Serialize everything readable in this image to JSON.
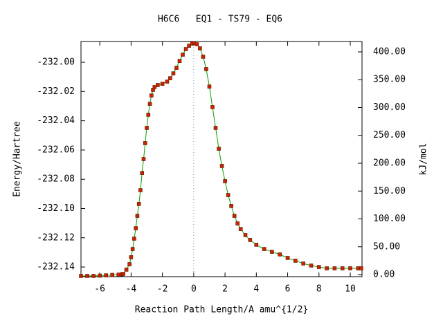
{
  "chart_data": {
    "type": "line",
    "title": "H6C6   EQ1 - TS79 - EQ6",
    "x_label": "Reaction Path Length/A amu^{1/2}",
    "y_label": "Energy/Hartree",
    "y2_label": "kJ/mol",
    "x": [
      -7.2,
      -6.8,
      -6.4,
      -6.0,
      -5.6,
      -5.2,
      -4.8,
      -4.6,
      -4.5,
      -4.3,
      -4.1,
      -4.0,
      -3.9,
      -3.8,
      -3.7,
      -3.6,
      -3.5,
      -3.4,
      -3.3,
      -3.2,
      -3.1,
      -3.0,
      -2.9,
      -2.8,
      -2.7,
      -2.6,
      -2.5,
      -2.3,
      -2.0,
      -1.7,
      -1.5,
      -1.3,
      -1.1,
      -0.9,
      -0.7,
      -0.5,
      -0.3,
      -0.1,
      0.0,
      0.2,
      0.4,
      0.6,
      0.8,
      1.0,
      1.2,
      1.4,
      1.6,
      1.8,
      2.0,
      2.2,
      2.4,
      2.6,
      2.8,
      3.0,
      3.3,
      3.6,
      4.0,
      4.5,
      5.0,
      5.5,
      6.0,
      6.5,
      7.0,
      7.5,
      8.0,
      8.5,
      9.0,
      9.5,
      10.0,
      10.5,
      10.7
    ],
    "values": [
      -232.1461,
      -232.1461,
      -232.1461,
      -232.1459,
      -232.1457,
      -232.1454,
      -232.1452,
      -232.145,
      -232.1447,
      -232.1418,
      -232.1381,
      -232.1333,
      -232.1277,
      -232.1206,
      -232.1135,
      -232.105,
      -232.0969,
      -232.0875,
      -232.0757,
      -232.0662,
      -232.0553,
      -232.0449,
      -232.0359,
      -232.0284,
      -232.0227,
      -232.0189,
      -232.017,
      -232.0156,
      -232.0147,
      -232.0132,
      -232.0109,
      -232.0076,
      -232.0038,
      -231.9991,
      -231.9948,
      -231.991,
      -231.9887,
      -231.9872,
      -231.9868,
      -231.9877,
      -231.9905,
      -231.9962,
      -232.0047,
      -232.0166,
      -232.0307,
      -232.0449,
      -232.0591,
      -232.0709,
      -232.0813,
      -232.0908,
      -232.0983,
      -232.105,
      -232.1102,
      -232.114,
      -232.1182,
      -232.1215,
      -232.1248,
      -232.1277,
      -232.1296,
      -232.1314,
      -232.1338,
      -232.1357,
      -232.1376,
      -232.139,
      -232.14,
      -232.1409,
      -232.1409,
      -232.1409,
      -232.1409,
      -232.1409,
      -232.1409
    ],
    "line_color": "#00a000",
    "marker_color": "#cc2200",
    "xlim": [
      -7.2,
      10.75
    ],
    "xticks": [
      -6,
      -4,
      -2,
      0,
      2,
      4,
      6,
      8,
      10
    ],
    "ylim": [
      -232.1466,
      -231.9858
    ],
    "yticks": [
      {
        "value": -232.14,
        "label": "-232.14"
      },
      {
        "value": -232.12,
        "label": "-232.12"
      },
      {
        "value": -232.1,
        "label": "-232.10"
      },
      {
        "value": -232.08,
        "label": "-232.08"
      },
      {
        "value": -232.06,
        "label": "-232.06"
      },
      {
        "value": -232.04,
        "label": "-232.04"
      },
      {
        "value": -232.02,
        "label": "-232.02"
      },
      {
        "value": -232.0,
        "label": "-232.00"
      }
    ],
    "y2lim": [
      -3.7,
      418.6
    ],
    "y2ticks": [
      {
        "value": 0,
        "label": "0.00"
      },
      {
        "value": 50,
        "label": "50.00"
      },
      {
        "value": 100,
        "label": "100.00"
      },
      {
        "value": 150,
        "label": "150.00"
      },
      {
        "value": 200,
        "label": "200.00"
      },
      {
        "value": 250,
        "label": "250.00"
      },
      {
        "value": 300,
        "label": "300.00"
      },
      {
        "value": 350,
        "label": "350.00"
      },
      {
        "value": 400,
        "label": "400.00"
      }
    ]
  }
}
